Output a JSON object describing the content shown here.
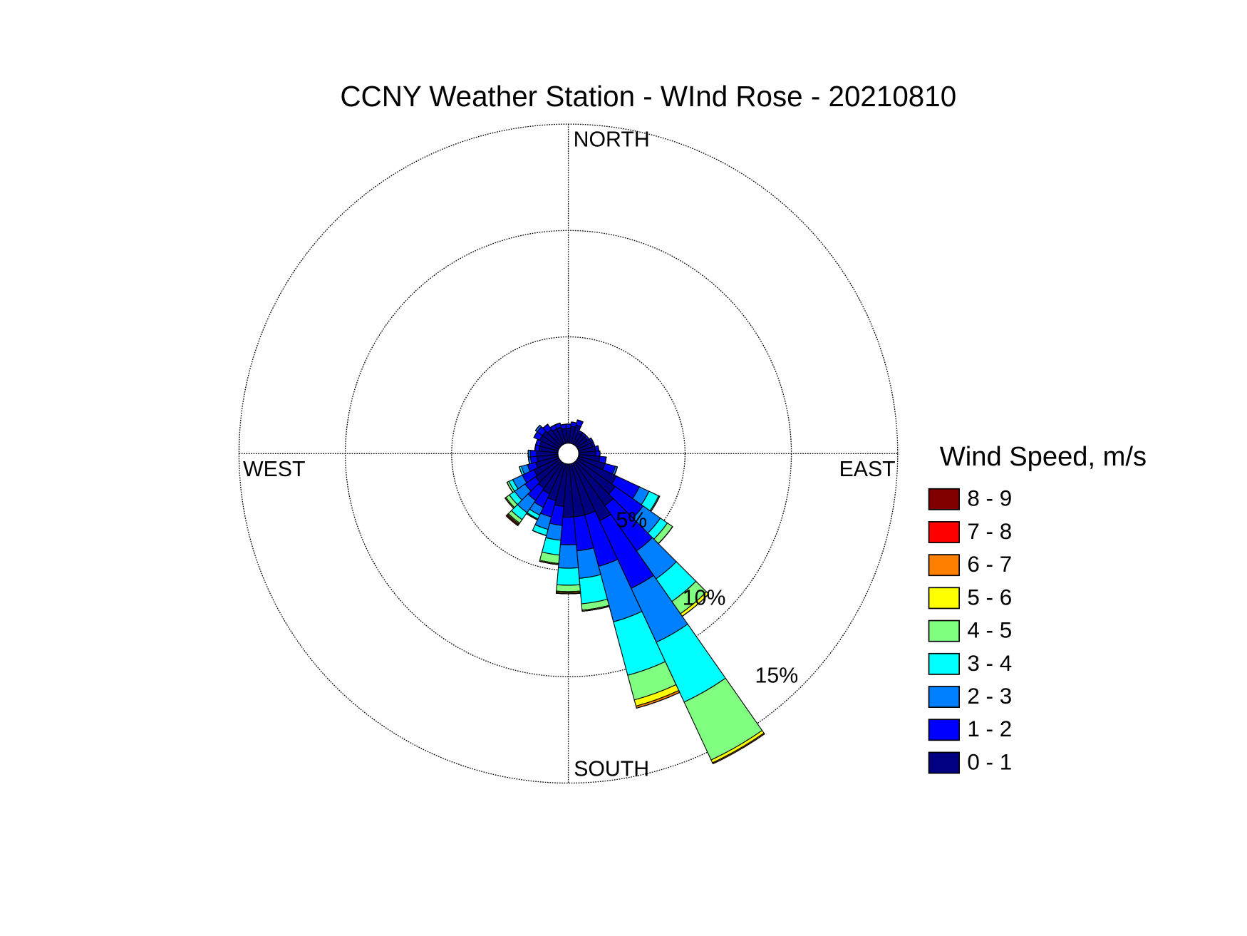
{
  "chart_data": {
    "type": "windrose",
    "title": "CCNY Weather Station - WInd Rose - 20210810",
    "legend_title": "Wind Speed, m/s",
    "direction_labels": {
      "north": "NORTH",
      "east": "EAST",
      "south": "SOUTH",
      "west": "WEST"
    },
    "x": [
      0,
      10,
      20,
      30,
      40,
      50,
      60,
      70,
      80,
      90,
      100,
      110,
      120,
      130,
      140,
      150,
      160,
      170,
      180,
      190,
      200,
      210,
      220,
      230,
      240,
      250,
      260,
      270,
      280,
      290,
      300,
      310,
      320,
      330,
      340,
      350
    ],
    "rlim": [
      0,
      15
    ],
    "rticks": [
      {
        "value": 5,
        "label": "5%"
      },
      {
        "value": 10,
        "label": "10%"
      },
      {
        "value": 15,
        "label": "15%"
      }
    ],
    "series": [
      {
        "name": "0 - 1",
        "color": "#000080",
        "values": [
          0.7,
          0.8,
          0.9,
          0.6,
          0.6,
          0.6,
          0.7,
          0.7,
          0.8,
          0.8,
          1.0,
          1.3,
          2.0,
          2.2,
          2.5,
          3.0,
          2.5,
          2.5,
          2.5,
          2.0,
          1.8,
          1.6,
          1.5,
          1.4,
          1.3,
          1.1,
          1.0,
          1.0,
          0.9,
          0.9,
          1.0,
          1.0,
          0.9,
          0.8,
          0.8,
          0.7
        ]
      },
      {
        "name": "1 - 2",
        "color": "#0000ff",
        "values": [
          0.2,
          0.2,
          0.25,
          0.1,
          0.1,
          0.1,
          0.1,
          0.1,
          0.15,
          0.2,
          0.3,
          0.5,
          1.2,
          1.6,
          2.6,
          3.5,
          2.5,
          1.6,
          1.3,
          0.9,
          0.8,
          0.7,
          0.7,
          0.6,
          0.6,
          0.4,
          0.3,
          0.3,
          0.2,
          0.2,
          0.3,
          0.3,
          0.3,
          0.2,
          0.2,
          0.2
        ]
      },
      {
        "name": "2 - 3",
        "color": "#0080ff",
        "values": [
          0,
          0,
          0,
          0,
          0,
          0,
          0,
          0,
          0,
          0,
          0,
          0.1,
          0.5,
          1.0,
          1.6,
          2.8,
          2.7,
          1.3,
          1.1,
          0.7,
          0.6,
          0.4,
          0.7,
          0.6,
          0.5,
          0.3,
          0.1,
          0.1,
          0,
          0,
          0,
          0.1,
          0,
          0,
          0,
          0
        ]
      },
      {
        "name": "3 - 4",
        "color": "#00ffff",
        "values": [
          0,
          0,
          0,
          0,
          0,
          0,
          0,
          0,
          0,
          0,
          0,
          0,
          0.5,
          0.4,
          1.3,
          3.1,
          2.6,
          1.2,
          0.8,
          0.7,
          0.3,
          0.2,
          0.4,
          0.3,
          0.2,
          0.1,
          0,
          0,
          0,
          0,
          0,
          0,
          0,
          0,
          0,
          0
        ]
      },
      {
        "name": "4 - 5",
        "color": "#80ff80",
        "values": [
          0,
          0,
          0,
          0,
          0,
          0,
          0,
          0,
          0,
          0,
          0,
          0,
          0.05,
          0.3,
          0.7,
          3.0,
          1.2,
          0.3,
          0.3,
          0.4,
          0,
          0.05,
          0.2,
          0.2,
          0.1,
          0,
          0,
          0,
          0,
          0,
          0,
          0,
          0,
          0,
          0,
          0
        ]
      },
      {
        "name": "5 - 6",
        "color": "#ffff00",
        "values": [
          0,
          0,
          0,
          0,
          0,
          0,
          0,
          0,
          0,
          0,
          0,
          0,
          0,
          0,
          0.15,
          0.15,
          0.3,
          0.05,
          0.05,
          0.05,
          0,
          0,
          0.05,
          0.05,
          0,
          0,
          0,
          0,
          0,
          0,
          0,
          0,
          0,
          0,
          0,
          0
        ]
      },
      {
        "name": "6 - 7",
        "color": "#ff8000",
        "values": [
          0,
          0,
          0,
          0,
          0,
          0,
          0,
          0,
          0,
          0,
          0,
          0,
          0,
          0,
          0,
          0.05,
          0.1,
          0,
          0.05,
          0,
          0,
          0,
          0.05,
          0,
          0,
          0,
          0,
          0,
          0,
          0,
          0,
          0,
          0,
          0,
          0,
          0
        ]
      },
      {
        "name": "7 - 8",
        "color": "#ff0000",
        "values": [
          0,
          0,
          0,
          0,
          0,
          0,
          0,
          0,
          0,
          0,
          0,
          0,
          0,
          0,
          0,
          0,
          0,
          0,
          0,
          0,
          0,
          0,
          0.05,
          0,
          0,
          0,
          0,
          0,
          0,
          0,
          0,
          0,
          0,
          0,
          0,
          0
        ]
      },
      {
        "name": "8 - 9",
        "color": "#800000",
        "values": [
          0,
          0,
          0,
          0,
          0,
          0,
          0,
          0,
          0,
          0,
          0,
          0,
          0,
          0,
          0,
          0,
          0,
          0,
          0,
          0,
          0,
          0,
          0,
          0,
          0,
          0,
          0,
          0,
          0,
          0,
          0,
          0,
          0,
          0,
          0,
          0
        ]
      }
    ]
  }
}
